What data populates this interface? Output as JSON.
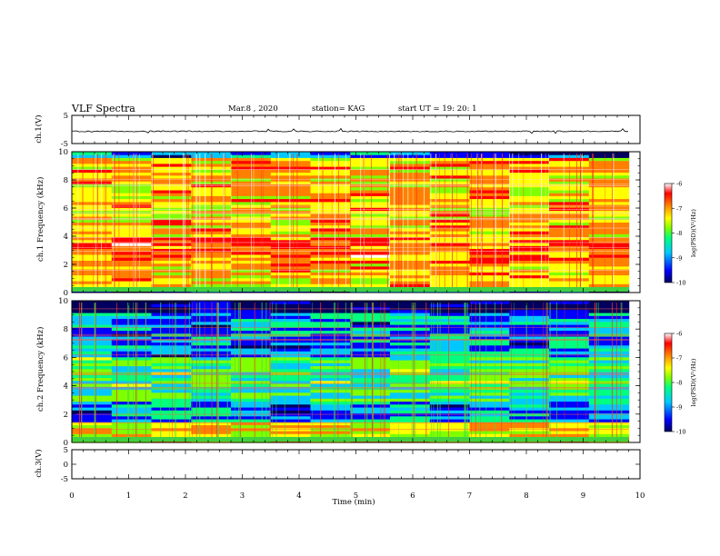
{
  "header": {
    "title": "VLF Spectra",
    "date": "Mar.8 , 2020",
    "station": "station= KAG",
    "start": "start UT = 19: 20: 1"
  },
  "chart_data": [
    {
      "type": "line",
      "panel": "ch1-waveform",
      "ylabel": "ch.1(V)",
      "ylim": [
        -5,
        5
      ],
      "yticks": [
        "5",
        "-5"
      ],
      "xlim": [
        0,
        10
      ]
    },
    {
      "type": "heatmap",
      "panel": "ch1-spectrogram",
      "ylabel": "ch.1 Frequency (kHz)",
      "ylim": [
        0,
        10
      ],
      "yticks": [
        "0",
        "2",
        "4",
        "6",
        "8",
        "10"
      ],
      "xlim": [
        0,
        10
      ],
      "colorbar": {
        "label": "log(PSD)(V²/Hz)",
        "ticks": [
          "-6",
          "-7",
          "-8",
          "-9",
          "-10"
        ],
        "range": [
          -10,
          -6
        ]
      },
      "data_extent_min": 9.8
    },
    {
      "type": "heatmap",
      "panel": "ch2-spectrogram",
      "ylabel": "ch.2 Frequency (kHz)",
      "ylim": [
        0,
        10
      ],
      "yticks": [
        "0",
        "2",
        "4",
        "6",
        "8",
        "10"
      ],
      "xlim": [
        0,
        10
      ],
      "colorbar": {
        "label": "log(PSD)(V²/Hz)",
        "ticks": [
          "-6",
          "-7",
          "-8",
          "-9",
          "-10"
        ],
        "range": [
          -10,
          -6
        ]
      },
      "data_extent_min": 9.8
    },
    {
      "type": "line",
      "panel": "ch3-waveform",
      "ylabel": "ch.3(V)",
      "ylim": [
        -5,
        5
      ],
      "yticks": [
        "5",
        "0",
        "-5"
      ],
      "xlim": [
        0,
        10
      ]
    }
  ],
  "xaxis": {
    "label": "Time (min)",
    "ticks": [
      "0",
      "1",
      "2",
      "3",
      "4",
      "5",
      "6",
      "7",
      "8",
      "9",
      "10"
    ]
  },
  "colors": {
    "colormap": [
      "#000060",
      "#0000ff",
      "#00c8ff",
      "#00ff80",
      "#80ff00",
      "#ffff00",
      "#ff8000",
      "#ff0000",
      "#ffffff"
    ]
  }
}
